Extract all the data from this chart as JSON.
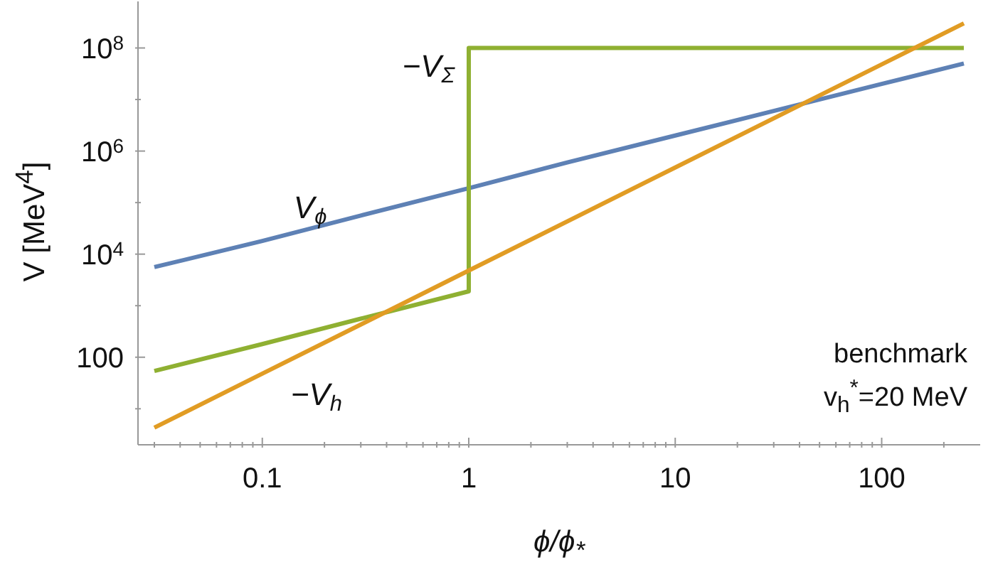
{
  "chart_data": {
    "type": "line",
    "xlabel": "ϕ/ϕ$_{*}$",
    "ylabel": "V [MeV$^{4}$]",
    "log": "xy",
    "xlim": [
      0.025,
      300
    ],
    "ylim": [
      2,
      800000000
    ],
    "xticks": [
      {
        "value": 0.03,
        "label": null
      },
      {
        "value": 0.04,
        "label": null
      },
      {
        "value": 0.05,
        "label": null
      },
      {
        "value": 0.06,
        "label": null
      },
      {
        "value": 0.07,
        "label": null
      },
      {
        "value": 0.08,
        "label": null
      },
      {
        "value": 0.09,
        "label": null
      },
      0.1,
      {
        "value": 0.2,
        "label": null
      },
      {
        "value": 0.3,
        "label": null
      },
      {
        "value": 0.4,
        "label": null
      },
      {
        "value": 0.5,
        "label": null
      },
      {
        "value": 0.6,
        "label": null
      },
      {
        "value": 0.7,
        "label": null
      },
      {
        "value": 0.8,
        "label": null
      },
      {
        "value": 0.9,
        "label": null
      },
      1,
      {
        "value": 2,
        "label": null
      },
      {
        "value": 3,
        "label": null
      },
      {
        "value": 4,
        "label": null
      },
      {
        "value": 5,
        "label": null
      },
      {
        "value": 6,
        "label": null
      },
      {
        "value": 7,
        "label": null
      },
      {
        "value": 8,
        "label": null
      },
      {
        "value": 9,
        "label": null
      },
      10,
      {
        "value": 20,
        "label": null
      },
      {
        "value": 30,
        "label": null
      },
      {
        "value": 40,
        "label": null
      },
      {
        "value": 50,
        "label": null
      },
      {
        "value": 60,
        "label": null
      },
      {
        "value": 70,
        "label": null
      },
      {
        "value": 80,
        "label": null
      },
      {
        "value": 90,
        "label": null
      },
      100,
      {
        "value": 200,
        "label": null
      }
    ],
    "yticks": [
      {
        "value": 10,
        "label": null
      },
      100,
      {
        "value": 1000,
        "label": null
      },
      {
        "value": 10000,
        "label": "10$^{4}$"
      },
      {
        "value": 100000,
        "label": null
      },
      {
        "value": 1000000,
        "label": "10$^{6}$"
      },
      {
        "value": 10000000,
        "label": null
      },
      {
        "value": 100000000,
        "label": "10$^{8}$"
      }
    ],
    "series": [
      {
        "name": "V$_{ϕ}$",
        "color": "#5e81b5",
        "x": [
          0.03,
          0.1,
          0.3,
          1,
          3,
          10,
          30,
          100,
          250
        ],
        "values": [
          5600,
          18000,
          56000,
          190000,
          600000,
          2000000,
          6000000,
          20000000,
          50000000
        ]
      },
      {
        "name": "−V$_{Σ}$",
        "color": "#8fb032",
        "x": [
          0.03,
          0.1,
          0.3,
          1,
          1,
          10,
          100,
          250
        ],
        "values": [
          54,
          180,
          560,
          1900,
          100000000,
          100000000,
          100000000,
          100000000
        ]
      },
      {
        "name": "−V$_{h}$",
        "color": "#e19c24",
        "x": [
          0.03,
          0.1,
          0.3,
          1,
          10,
          100,
          250
        ],
        "values": [
          4.3,
          48,
          430,
          4800,
          480000,
          48000000,
          300000000
        ]
      }
    ],
    "annotations": [
      "benchmark",
      "v$_{h}$$^{*}$=20 MeV"
    ]
  }
}
